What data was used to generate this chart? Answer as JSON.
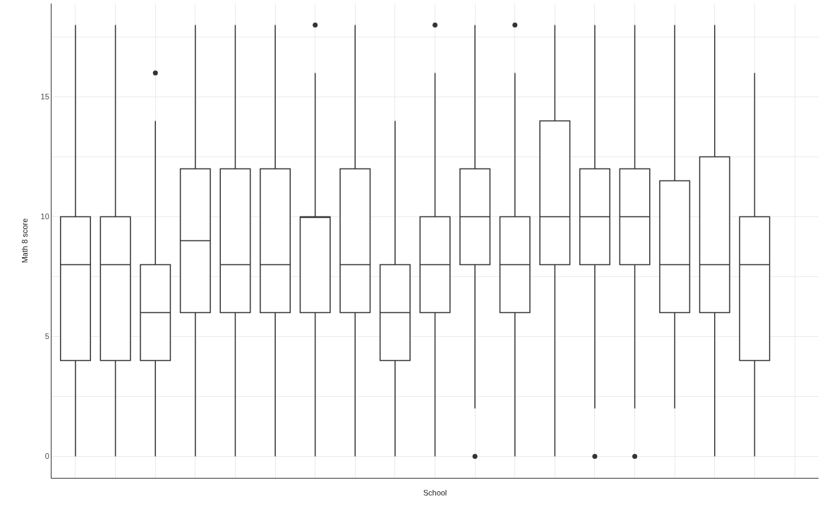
{
  "chart_data": {
    "type": "box",
    "xlabel": "School",
    "ylabel": "Math 8 score",
    "categories": [
      null,
      null,
      null,
      null,
      null,
      null,
      null,
      null,
      null,
      null,
      null,
      null,
      null,
      null,
      null,
      null,
      null,
      null,
      null
    ],
    "boxes": [
      {
        "low": 0,
        "q1": 4,
        "median": 8,
        "q3": 10,
        "high": 18
      },
      {
        "low": 0,
        "q1": 4,
        "median": 8,
        "q3": 10,
        "high": 18
      },
      {
        "low": 0,
        "q1": 4,
        "median": 6,
        "q3": 8,
        "high": 14,
        "outliers": [
          16
        ]
      },
      {
        "low": 0,
        "q1": 6,
        "median": 9,
        "q3": 12,
        "high": 18
      },
      {
        "low": 0,
        "q1": 6,
        "median": 8,
        "q3": 12,
        "high": 18
      },
      {
        "low": 0,
        "q1": 6,
        "median": 8,
        "q3": 12,
        "high": 18
      },
      {
        "low": 0,
        "q1": 6,
        "median": 10,
        "q3": 10,
        "high": 16,
        "outliers": [
          18
        ]
      },
      {
        "low": 0,
        "q1": 6,
        "median": 8,
        "q3": 12,
        "high": 18
      },
      {
        "low": 0,
        "q1": 4,
        "median": 6,
        "q3": 8,
        "high": 14
      },
      {
        "low": 0,
        "q1": 6,
        "median": 8,
        "q3": 10,
        "high": 16,
        "outliers": [
          18
        ]
      },
      {
        "low": 2,
        "q1": 8,
        "median": 10,
        "q3": 12,
        "high": 18,
        "outliers": [
          0
        ]
      },
      {
        "low": 0,
        "q1": 6,
        "median": 8,
        "q3": 10,
        "high": 16,
        "outliers": [
          18
        ]
      },
      {
        "low": 0,
        "q1": 8,
        "median": 10,
        "q3": 14,
        "high": 18
      },
      {
        "low": 2,
        "q1": 8,
        "median": 10,
        "q3": 12,
        "high": 18,
        "outliers": [
          0
        ]
      },
      {
        "low": 2,
        "q1": 8,
        "median": 10,
        "q3": 12,
        "high": 18,
        "outliers": [
          0
        ]
      },
      {
        "low": 2,
        "q1": 6,
        "median": 8,
        "q3": 11.5,
        "high": 18
      },
      {
        "low": 0,
        "q1": 6,
        "median": 8,
        "q3": 12.5,
        "high": 18
      },
      {
        "low": 0,
        "q1": 4,
        "median": 8,
        "q3": 10,
        "high": 16
      },
      null
    ],
    "color": "#333333",
    "ylim": [
      -0.9,
      18.9
    ],
    "yticks": [
      0,
      {
        "value": 2.5,
        "label": null
      },
      5,
      {
        "value": 7.5,
        "label": null
      },
      10,
      {
        "value": 12.5,
        "label": null
      },
      15,
      {
        "value": 17.5,
        "label": null
      }
    ],
    "grid": true,
    "tick_labels": "y"
  }
}
